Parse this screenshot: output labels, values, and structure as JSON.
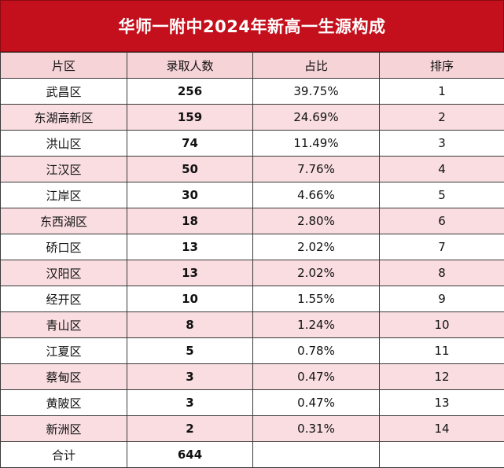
{
  "title": "华师一附中2024年新高一生源构成",
  "columns": [
    "片区",
    "录取人数",
    "占比",
    "排序"
  ],
  "rows": [
    {
      "district": "武昌区",
      "count": "256",
      "ratio": "39.75%",
      "rank": "1"
    },
    {
      "district": "东湖高新区",
      "count": "159",
      "ratio": "24.69%",
      "rank": "2"
    },
    {
      "district": "洪山区",
      "count": "74",
      "ratio": "11.49%",
      "rank": "3"
    },
    {
      "district": "江汉区",
      "count": "50",
      "ratio": "7.76%",
      "rank": "4"
    },
    {
      "district": "江岸区",
      "count": "30",
      "ratio": "4.66%",
      "rank": "5"
    },
    {
      "district": "东西湖区",
      "count": "18",
      "ratio": "2.80%",
      "rank": "6"
    },
    {
      "district": "硚口区",
      "count": "13",
      "ratio": "2.02%",
      "rank": "7"
    },
    {
      "district": "汉阳区",
      "count": "13",
      "ratio": "2.02%",
      "rank": "8"
    },
    {
      "district": "经开区",
      "count": "10",
      "ratio": "1.55%",
      "rank": "9"
    },
    {
      "district": "青山区",
      "count": "8",
      "ratio": "1.24%",
      "rank": "10"
    },
    {
      "district": "江夏区",
      "count": "5",
      "ratio": "0.78%",
      "rank": "11"
    },
    {
      "district": "蔡甸区",
      "count": "3",
      "ratio": "0.47%",
      "rank": "12"
    },
    {
      "district": "黄陂区",
      "count": "3",
      "ratio": "0.47%",
      "rank": "13"
    },
    {
      "district": "新洲区",
      "count": "2",
      "ratio": "0.31%",
      "rank": "14"
    }
  ],
  "total": {
    "label": "合计",
    "count": "644",
    "ratio": "",
    "rank": ""
  },
  "colors": {
    "title_bg": "#c4101c",
    "header_bg": "#f6d3d7",
    "stripe_bg": "#f9dde1",
    "border": "#3a3a3a"
  }
}
